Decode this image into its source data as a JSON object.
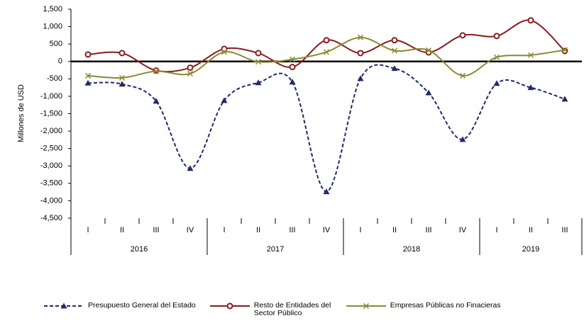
{
  "chart_data": {
    "type": "line",
    "ylabel": "Millones de USD",
    "categories": [
      "I",
      "II",
      "III",
      "IV",
      "I",
      "II",
      "III",
      "IV",
      "I",
      "II",
      "III",
      "IV",
      "I",
      "II",
      "III"
    ],
    "groups": [
      {
        "label": "2016",
        "count": 4
      },
      {
        "label": "2017",
        "count": 4
      },
      {
        "label": "2018",
        "count": 4
      },
      {
        "label": "2019",
        "count": 3
      }
    ],
    "ylim": [
      -4500,
      1500
    ],
    "yticks": [
      {
        "value": 1500,
        "label": "1,500"
      },
      {
        "value": 1000,
        "label": "1,000"
      },
      500,
      0,
      -500,
      {
        "value": -1000,
        "label": "-1,000"
      },
      {
        "value": -1500,
        "label": "-1,500"
      },
      {
        "value": -2000,
        "label": "-2,000"
      },
      {
        "value": -2500,
        "label": "-2,500"
      },
      {
        "value": -3000,
        "label": "-3,000"
      },
      {
        "value": -3500,
        "label": "-3,500"
      },
      {
        "value": -4000,
        "label": "-4,000"
      },
      {
        "value": -4500,
        "label": "-4,500"
      }
    ],
    "series": [
      {
        "name": "Presupuesto General del Estado",
        "color": "#1f2a6b",
        "marker": "triangle",
        "dashed": true,
        "values": [
          -620,
          -650,
          -1140,
          -3070,
          -1120,
          -610,
          -590,
          -3740,
          -490,
          -200,
          -900,
          -2240,
          -630,
          -750,
          -1080
        ]
      },
      {
        "name": "Resto de Entidades del Sector Público",
        "color": "#8b1a1a",
        "marker": "circle",
        "dashed": false,
        "values": [
          200,
          240,
          -260,
          -180,
          360,
          240,
          -160,
          610,
          240,
          610,
          260,
          750,
          730,
          1180,
          300
        ]
      },
      {
        "name": "Empresas Públicas no Finacieras",
        "color": "#8a8a2e",
        "marker": "x",
        "dashed": false,
        "values": [
          -410,
          -470,
          -280,
          -350,
          270,
          -10,
          60,
          270,
          690,
          310,
          320,
          -410,
          120,
          180,
          330
        ]
      }
    ]
  }
}
